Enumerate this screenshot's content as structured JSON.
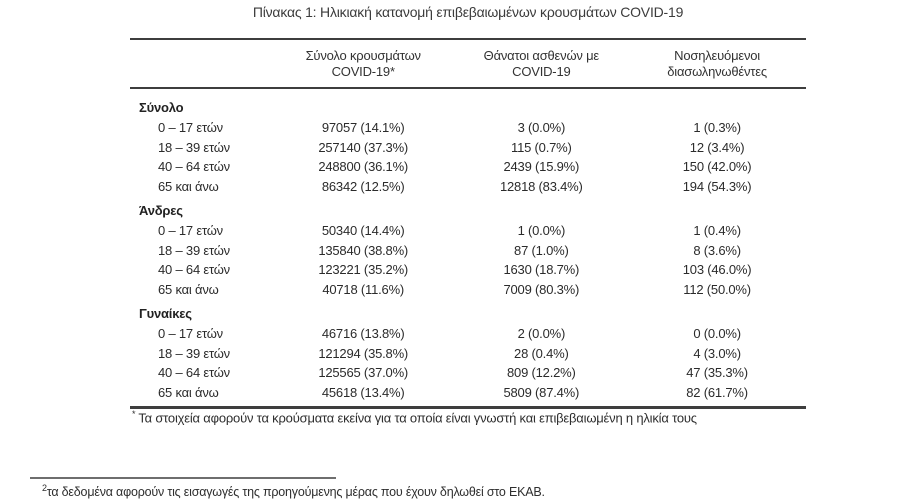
{
  "title": "Πίνακας 1: Ηλικιακή κατανομή επιβεβαιωμένων κρουσμάτων COVID-19",
  "table": {
    "headers": [
      {
        "line1": "Σύνολο κρουσμάτων",
        "line2": "COVID-19*"
      },
      {
        "line1": "Θάνατοι ασθενών με",
        "line2": "COVID-19"
      },
      {
        "line1": "Νοσηλευόμενοι",
        "line2": "διασωληνωθέντες"
      }
    ],
    "sections": [
      {
        "label": "Σύνολο",
        "rows": [
          {
            "age": "0 – 17 ετών",
            "cases": "97057 (14.1%)",
            "deaths": "3 (0.0%)",
            "intubated": "1 (0.3%)"
          },
          {
            "age": "18 – 39 ετών",
            "cases": "257140 (37.3%)",
            "deaths": "115 (0.7%)",
            "intubated": "12 (3.4%)"
          },
          {
            "age": "40 – 64 ετών",
            "cases": "248800 (36.1%)",
            "deaths": "2439 (15.9%)",
            "intubated": "150 (42.0%)"
          },
          {
            "age": "65 και άνω",
            "cases": "86342 (12.5%)",
            "deaths": "12818 (83.4%)",
            "intubated": "194 (54.3%)"
          }
        ]
      },
      {
        "label": "Άνδρες",
        "rows": [
          {
            "age": "0 – 17 ετών",
            "cases": "50340 (14.4%)",
            "deaths": "1 (0.0%)",
            "intubated": "1 (0.4%)"
          },
          {
            "age": "18 – 39 ετών",
            "cases": "135840 (38.8%)",
            "deaths": "87 (1.0%)",
            "intubated": "8 (3.6%)"
          },
          {
            "age": "40 – 64 ετών",
            "cases": "123221 (35.2%)",
            "deaths": "1630 (18.7%)",
            "intubated": "103 (46.0%)"
          },
          {
            "age": "65 και άνω",
            "cases": "40718 (11.6%)",
            "deaths": "7009 (80.3%)",
            "intubated": "112 (50.0%)"
          }
        ]
      },
      {
        "label": "Γυναίκες",
        "rows": [
          {
            "age": "0 – 17 ετών",
            "cases": "46716 (13.8%)",
            "deaths": "2 (0.0%)",
            "intubated": "0 (0.0%)"
          },
          {
            "age": "18 – 39 ετών",
            "cases": "121294 (35.8%)",
            "deaths": "28 (0.4%)",
            "intubated": "4 (3.0%)"
          },
          {
            "age": "40 – 64 ετών",
            "cases": "125565 (37.0%)",
            "deaths": "809 (12.2%)",
            "intubated": "47 (35.3%)"
          },
          {
            "age": "65 και άνω",
            "cases": "45618 (13.4%)",
            "deaths": "5809 (87.4%)",
            "intubated": "82 (61.7%)"
          }
        ]
      }
    ],
    "footnote_marker": "*",
    "footnote": "Τα στοιχεία αφορούν τα κρούσματα εκείνα για τα οποία είναι γνωστή και επιβεβαιωμένη η ηλικία τους"
  },
  "page_footnote": {
    "marker": "2",
    "text": "τα δεδομένα αφορούν τις εισαγωγές της προηγούμενης μέρας που έχουν δηλωθεί στο ΕΚΑΒ."
  },
  "colors": {
    "text": "#2b2b2b",
    "rule": "#3e3e3e",
    "footnote_rule": "#6e6e6e",
    "background": "#ffffff"
  }
}
